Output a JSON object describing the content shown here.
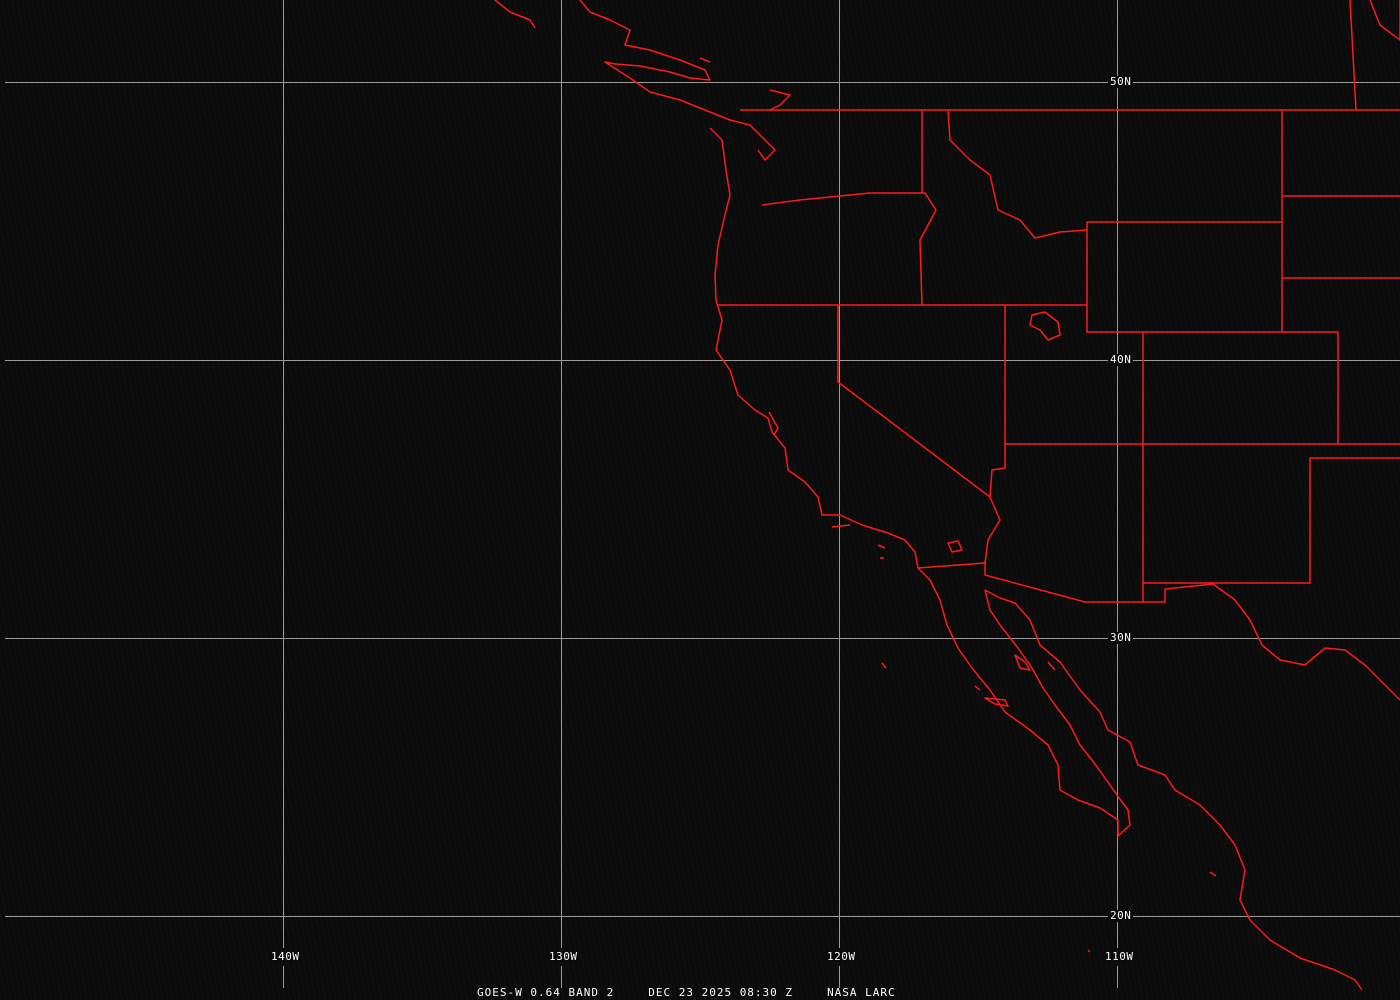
{
  "map": {
    "grid_color": "#9a9a9a",
    "boundary_color": "#ff1a1a",
    "longitude_labels": [
      "140W",
      "130W",
      "120W",
      "110W"
    ],
    "latitude_labels": [
      "50N",
      "40N",
      "30N",
      "20N"
    ]
  },
  "footer": {
    "satellite": "GOES-W 0.64 BAND 2",
    "datetime": "DEC 23 2025 08:30 Z",
    "source": "NASA LARC"
  }
}
